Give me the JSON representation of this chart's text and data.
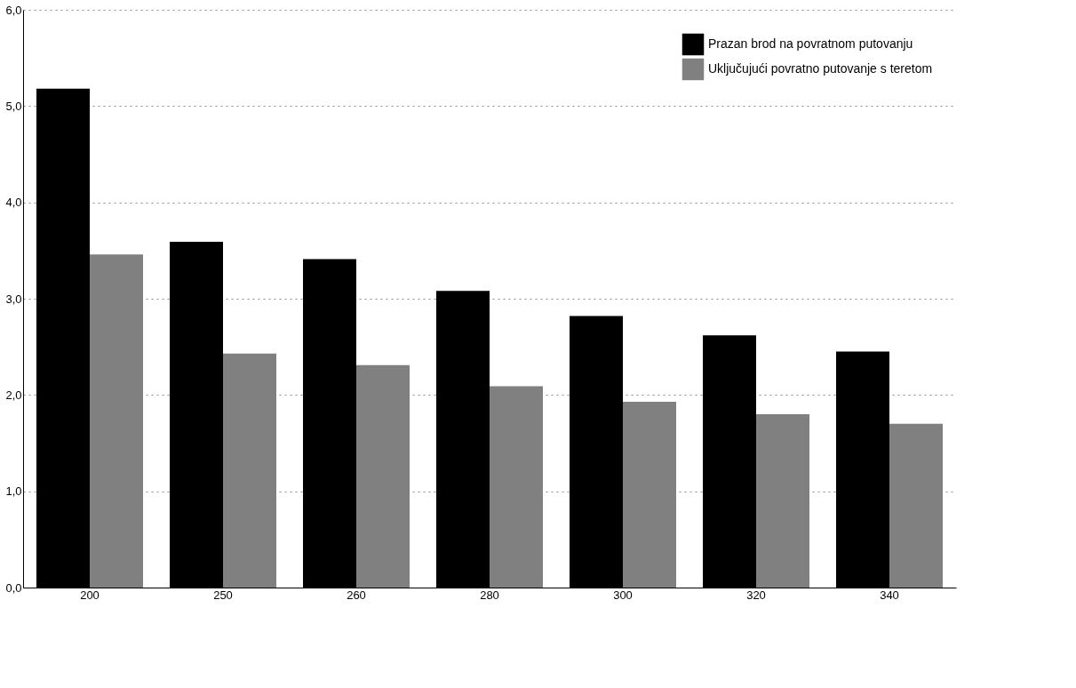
{
  "chart_data": {
    "type": "bar",
    "categories": [
      "200",
      "250",
      "260",
      "280",
      "300",
      "320",
      "340"
    ],
    "series": [
      {
        "name": "Prazan brod na povratnom putovanju",
        "color": "#000000",
        "values": [
          5.18,
          3.59,
          3.41,
          3.08,
          2.82,
          2.62,
          2.45
        ]
      },
      {
        "name": "Uključujući povratno putovanje s teretom",
        "color": "#808080",
        "values": [
          3.46,
          2.43,
          2.31,
          2.09,
          1.93,
          1.8,
          1.7
        ]
      }
    ],
    "ylim": [
      0,
      6
    ],
    "yticks": [
      {
        "value": 0,
        "label": "0,0"
      },
      {
        "value": 1,
        "label": "1,0"
      },
      {
        "value": 2,
        "label": "2,0"
      },
      {
        "value": 3,
        "label": "3,0"
      },
      {
        "value": 4,
        "label": "4,0"
      },
      {
        "value": 5,
        "label": "5,0"
      },
      {
        "value": 6,
        "label": "6,0"
      }
    ],
    "grid": "y",
    "legend": "top right"
  }
}
